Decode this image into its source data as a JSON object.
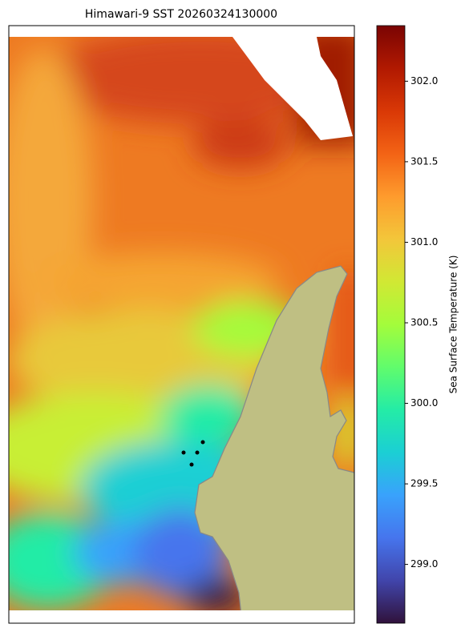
{
  "chart_data": {
    "type": "heatmap",
    "title": "Himawari-9 SST 20260324130000",
    "colorbar": {
      "label": "Sea Surface Temperature (K)",
      "colormap": "turbo",
      "lim": [
        298.635,
        302.345
      ],
      "ticks": [
        {
          "value": 299.0,
          "label": "299.0"
        },
        {
          "value": 299.5,
          "label": "299.5"
        },
        {
          "value": 300.0,
          "label": "300.0"
        },
        {
          "value": 300.5,
          "label": "300.5"
        },
        {
          "value": 301.0,
          "label": "301.0"
        },
        {
          "value": 301.5,
          "label": "301.5"
        },
        {
          "value": 302.0,
          "label": "302.0"
        }
      ]
    }
  }
}
